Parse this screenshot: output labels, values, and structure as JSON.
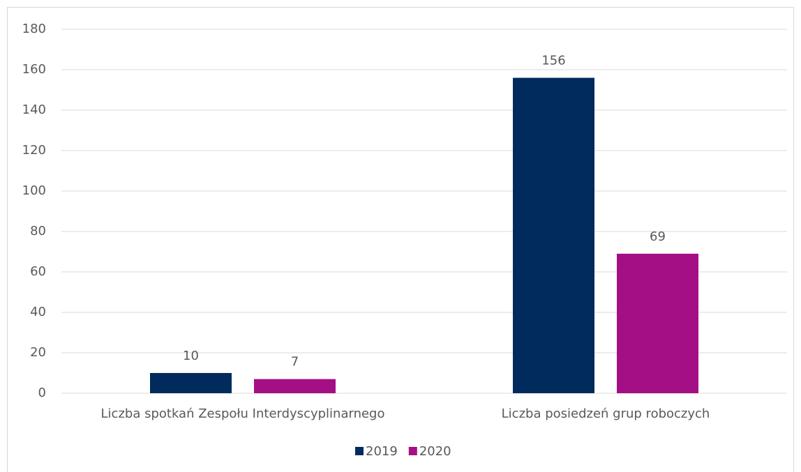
{
  "chart_data": {
    "type": "bar",
    "categories": [
      "Liczba spotkań Zespołu Interdyscyplinarnego",
      "Liczba posiedzeń grup roboczych"
    ],
    "series": [
      {
        "name": "2019",
        "color": "#002b5c",
        "values": [
          10,
          156
        ]
      },
      {
        "name": "2020",
        "color": "#a50f85",
        "values": [
          7,
          69
        ]
      }
    ],
    "ylim": [
      0,
      180
    ],
    "yticks": [
      0,
      20,
      40,
      60,
      80,
      100,
      120,
      140,
      160,
      180
    ],
    "grid": true,
    "legend": "bottom"
  }
}
